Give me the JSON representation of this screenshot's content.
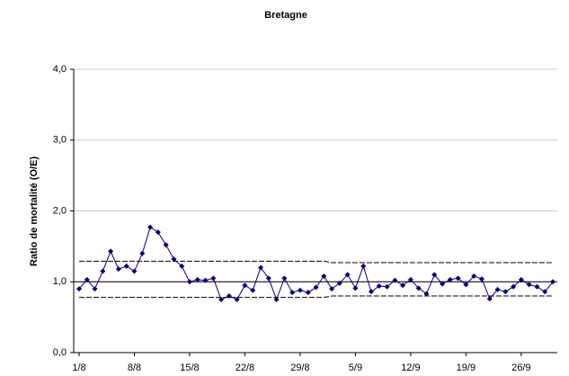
{
  "chart_data": {
    "type": "line",
    "title": "Bretagne",
    "y_label": "Ratio de mortalité (O/E)",
    "categories": [
      "1/8",
      null,
      null,
      null,
      null,
      null,
      null,
      "8/8",
      null,
      null,
      null,
      null,
      null,
      null,
      "15/8",
      null,
      null,
      null,
      null,
      null,
      null,
      "22/8",
      null,
      null,
      null,
      null,
      null,
      null,
      "29/8",
      null,
      null,
      null,
      null,
      null,
      null,
      "5/9",
      null,
      null,
      null,
      null,
      null,
      null,
      "12/9",
      null,
      null,
      null,
      null,
      null,
      null,
      "19/9",
      null,
      null,
      null,
      null,
      null,
      null,
      "26/9",
      null,
      null,
      null,
      null
    ],
    "series": [
      {
        "color": "#000080",
        "marker": true,
        "dash": false,
        "values": [
          0.9,
          1.03,
          0.9,
          1.15,
          1.43,
          1.18,
          1.22,
          1.15,
          1.4,
          1.77,
          1.7,
          1.52,
          1.32,
          1.22,
          1.0,
          1.03,
          1.02,
          1.05,
          0.75,
          0.8,
          0.75,
          0.95,
          0.88,
          1.2,
          1.05,
          0.75,
          1.05,
          0.85,
          0.88,
          0.85,
          0.92,
          1.08,
          0.9,
          0.98,
          1.1,
          0.91,
          1.22,
          0.86,
          0.94,
          0.93,
          1.02,
          0.95,
          1.03,
          0.91,
          0.83,
          1.1,
          0.97,
          1.03,
          1.05,
          0.96,
          1.08,
          1.04,
          0.76,
          0.89,
          0.86,
          0.93,
          1.03,
          0.96,
          0.93,
          0.86,
          1.0
        ]
      },
      {
        "color": "#000000",
        "marker": false,
        "dash": true,
        "values": [
          1.29,
          1.29,
          1.29,
          1.29,
          1.29,
          1.29,
          1.29,
          1.29,
          1.29,
          1.29,
          1.29,
          1.29,
          1.29,
          1.29,
          1.29,
          1.29,
          1.29,
          1.29,
          1.29,
          1.29,
          1.29,
          1.29,
          1.29,
          1.29,
          1.29,
          1.29,
          1.29,
          1.29,
          1.29,
          1.29,
          1.29,
          1.29,
          1.27,
          1.27,
          1.27,
          1.27,
          1.27,
          1.27,
          1.27,
          1.27,
          1.27,
          1.27,
          1.27,
          1.27,
          1.27,
          1.27,
          1.27,
          1.27,
          1.27,
          1.27,
          1.27,
          1.27,
          1.27,
          1.27,
          1.27,
          1.27,
          1.27,
          1.27,
          1.27,
          1.27,
          1.27
        ]
      },
      {
        "color": "#000000",
        "marker": false,
        "dash": true,
        "values": [
          0.78,
          0.78,
          0.78,
          0.78,
          0.78,
          0.78,
          0.78,
          0.78,
          0.78,
          0.78,
          0.78,
          0.78,
          0.78,
          0.78,
          0.78,
          0.78,
          0.78,
          0.78,
          0.78,
          0.78,
          0.78,
          0.78,
          0.78,
          0.78,
          0.78,
          0.78,
          0.78,
          0.78,
          0.78,
          0.78,
          0.78,
          0.78,
          0.8,
          0.8,
          0.8,
          0.8,
          0.8,
          0.8,
          0.8,
          0.8,
          0.8,
          0.8,
          0.8,
          0.8,
          0.8,
          0.8,
          0.8,
          0.8,
          0.8,
          0.8,
          0.8,
          0.8,
          0.8,
          0.8,
          0.8,
          0.8,
          0.8,
          0.8,
          0.8,
          0.8,
          0.8
        ]
      }
    ],
    "reference_line": 1,
    "ylim": [
      0,
      4
    ],
    "yticks": [
      {
        "value": 0,
        "label": "0,0"
      },
      {
        "value": 1,
        "label": "1,0"
      },
      {
        "value": 2,
        "label": "2,0"
      },
      {
        "value": 3,
        "label": "3,0"
      },
      {
        "value": 4,
        "label": "4,0"
      }
    ],
    "grid": true
  }
}
